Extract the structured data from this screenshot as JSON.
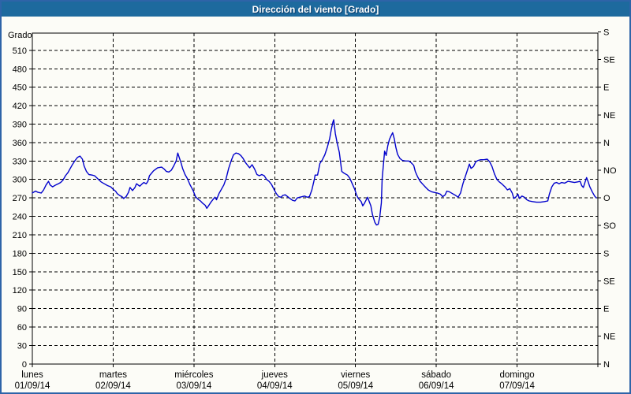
{
  "window": {
    "title": "Dirección del viento [Grado]"
  },
  "colors": {
    "titlebar_bg": "#1d6a9e",
    "title_text": "#ffffff",
    "window_border": "#2e64a8",
    "background": "#fcfcf7",
    "grid": "#000000",
    "line": "#0000cc"
  },
  "chart_data": {
    "type": "line",
    "title": "Dirección del viento [Grado]",
    "ylabel": "Grado",
    "y_left_range": [
      0,
      538
    ],
    "y_left_ticks": [
      0,
      30,
      60,
      90,
      120,
      150,
      180,
      210,
      240,
      270,
      300,
      330,
      360,
      390,
      420,
      450,
      480,
      510
    ],
    "grid": "dashed",
    "x_range_days": [
      0,
      7
    ],
    "x_days": [
      {
        "name": "lunes",
        "date": "01/09/14"
      },
      {
        "name": "martes",
        "date": "02/09/14"
      },
      {
        "name": "miércoles",
        "date": "03/09/14"
      },
      {
        "name": "jueves",
        "date": "04/09/14"
      },
      {
        "name": "viernes",
        "date": "05/09/14"
      },
      {
        "name": "sábado",
        "date": "06/09/14"
      },
      {
        "name": "domingo",
        "date": "07/09/14"
      }
    ],
    "right_axis": [
      {
        "value": 540,
        "label": "S"
      },
      {
        "value": 495,
        "label": "SE"
      },
      {
        "value": 450,
        "label": "E"
      },
      {
        "value": 405,
        "label": "NE"
      },
      {
        "value": 360,
        "label": "N"
      },
      {
        "value": 315,
        "label": "NO"
      },
      {
        "value": 270,
        "label": "O"
      },
      {
        "value": 225,
        "label": "SO"
      },
      {
        "value": 180,
        "label": "S"
      },
      {
        "value": 135,
        "label": "SE"
      },
      {
        "value": 90,
        "label": "E"
      },
      {
        "value": 45,
        "label": "NE"
      },
      {
        "value": 0,
        "label": "N"
      }
    ],
    "series": [
      {
        "name": "Dirección del viento",
        "unit": "Grado",
        "color": "#0000cc",
        "points": [
          [
            0,
            278
          ],
          [
            0.04,
            281
          ],
          [
            0.07,
            279
          ],
          [
            0.11,
            278
          ],
          [
            0.14,
            283
          ],
          [
            0.17,
            291
          ],
          [
            0.2,
            297
          ],
          [
            0.22,
            291
          ],
          [
            0.25,
            288
          ],
          [
            0.29,
            291
          ],
          [
            0.32,
            293
          ],
          [
            0.35,
            295
          ],
          [
            0.38,
            299
          ],
          [
            0.41,
            306
          ],
          [
            0.44,
            311
          ],
          [
            0.47,
            318
          ],
          [
            0.5,
            325
          ],
          [
            0.53,
            331
          ],
          [
            0.56,
            336
          ],
          [
            0.59,
            338
          ],
          [
            0.62,
            333
          ],
          [
            0.64,
            322
          ],
          [
            0.67,
            313
          ],
          [
            0.7,
            308
          ],
          [
            0.74,
            307
          ],
          [
            0.77,
            306
          ],
          [
            0.81,
            301
          ],
          [
            0.85,
            296
          ],
          [
            0.89,
            293
          ],
          [
            0.93,
            290
          ],
          [
            0.97,
            288
          ],
          [
            1,
            284
          ],
          [
            1.03,
            281
          ],
          [
            1.05,
            277
          ],
          [
            1.08,
            274
          ],
          [
            1.11,
            272
          ],
          [
            1.13,
            269
          ],
          [
            1.16,
            272
          ],
          [
            1.19,
            279
          ],
          [
            1.21,
            287
          ],
          [
            1.24,
            282
          ],
          [
            1.27,
            287
          ],
          [
            1.29,
            293
          ],
          [
            1.33,
            289
          ],
          [
            1.36,
            293
          ],
          [
            1.38,
            295
          ],
          [
            1.41,
            293
          ],
          [
            1.43,
            297
          ],
          [
            1.45,
            306
          ],
          [
            1.5,
            314
          ],
          [
            1.55,
            319
          ],
          [
            1.6,
            320
          ],
          [
            1.63,
            317
          ],
          [
            1.66,
            313
          ],
          [
            1.69,
            312
          ],
          [
            1.72,
            315
          ],
          [
            1.75,
            322
          ],
          [
            1.78,
            330
          ],
          [
            1.8,
            343
          ],
          [
            1.82,
            335
          ],
          [
            1.84,
            327
          ],
          [
            1.86,
            318
          ],
          [
            1.89,
            308
          ],
          [
            1.92,
            301
          ],
          [
            1.95,
            292
          ],
          [
            1.97,
            287
          ],
          [
            1.99,
            282
          ],
          [
            2.02,
            272
          ],
          [
            2.05,
            268
          ],
          [
            2.08,
            265
          ],
          [
            2.11,
            261
          ],
          [
            2.14,
            258
          ],
          [
            2.16,
            253
          ],
          [
            2.18,
            257
          ],
          [
            2.21,
            263
          ],
          [
            2.24,
            268
          ],
          [
            2.26,
            271
          ],
          [
            2.28,
            267
          ],
          [
            2.31,
            277
          ],
          [
            2.34,
            284
          ],
          [
            2.37,
            291
          ],
          [
            2.4,
            302
          ],
          [
            2.43,
            318
          ],
          [
            2.46,
            330
          ],
          [
            2.49,
            340
          ],
          [
            2.52,
            343
          ],
          [
            2.55,
            342
          ],
          [
            2.58,
            339
          ],
          [
            2.61,
            334
          ],
          [
            2.64,
            327
          ],
          [
            2.67,
            322
          ],
          [
            2.69,
            319
          ],
          [
            2.72,
            324
          ],
          [
            2.75,
            317
          ],
          [
            2.78,
            308
          ],
          [
            2.81,
            306
          ],
          [
            2.84,
            308
          ],
          [
            2.87,
            306
          ],
          [
            2.9,
            300
          ],
          [
            2.93,
            297
          ],
          [
            2.96,
            292
          ],
          [
            2.99,
            284
          ],
          [
            3.02,
            277
          ],
          [
            3.05,
            272
          ],
          [
            3.08,
            271
          ],
          [
            3.1,
            274
          ],
          [
            3.13,
            275
          ],
          [
            3.16,
            272
          ],
          [
            3.19,
            269
          ],
          [
            3.22,
            266
          ],
          [
            3.25,
            265
          ],
          [
            3.28,
            270
          ],
          [
            3.31,
            271
          ],
          [
            3.34,
            272
          ],
          [
            3.37,
            273
          ],
          [
            3.4,
            271
          ],
          [
            3.43,
            272
          ],
          [
            3.46,
            283
          ],
          [
            3.49,
            300
          ],
          [
            3.5,
            307
          ],
          [
            3.53,
            307
          ],
          [
            3.56,
            326
          ],
          [
            3.59,
            332
          ],
          [
            3.62,
            340
          ],
          [
            3.65,
            352
          ],
          [
            3.68,
            366
          ],
          [
            3.7,
            381
          ],
          [
            3.72,
            393
          ],
          [
            3.73,
            397
          ],
          [
            3.75,
            375
          ],
          [
            3.77,
            361
          ],
          [
            3.8,
            344
          ],
          [
            3.83,
            313
          ],
          [
            3.86,
            310
          ],
          [
            3.9,
            307
          ],
          [
            3.93,
            302
          ],
          [
            3.96,
            293
          ],
          [
            3.99,
            284
          ],
          [
            4.01,
            276
          ],
          [
            4.03,
            270
          ],
          [
            4.05,
            267
          ],
          [
            4.07,
            264
          ],
          [
            4.09,
            257
          ],
          [
            4.11,
            261
          ],
          [
            4.13,
            266
          ],
          [
            4.15,
            271
          ],
          [
            4.17,
            264
          ],
          [
            4.19,
            257
          ],
          [
            4.21,
            243
          ],
          [
            4.24,
            230
          ],
          [
            4.26,
            226
          ],
          [
            4.28,
            227
          ],
          [
            4.3,
            238
          ],
          [
            4.32,
            262
          ],
          [
            4.33,
            301
          ],
          [
            4.35,
            331
          ],
          [
            4.36,
            346
          ],
          [
            4.38,
            339
          ],
          [
            4.4,
            355
          ],
          [
            4.42,
            365
          ],
          [
            4.44,
            371
          ],
          [
            4.46,
            376
          ],
          [
            4.48,
            366
          ],
          [
            4.5,
            352
          ],
          [
            4.52,
            341
          ],
          [
            4.55,
            334
          ],
          [
            4.58,
            331
          ],
          [
            4.62,
            330
          ],
          [
            4.66,
            330
          ],
          [
            4.69,
            327
          ],
          [
            4.72,
            323
          ],
          [
            4.74,
            313
          ],
          [
            4.77,
            304
          ],
          [
            4.8,
            297
          ],
          [
            4.84,
            291
          ],
          [
            4.87,
            287
          ],
          [
            4.9,
            283
          ],
          [
            4.94,
            280
          ],
          [
            4.97,
            279
          ],
          [
            5.01,
            278
          ],
          [
            5.05,
            276
          ],
          [
            5.08,
            272
          ],
          [
            5.11,
            275
          ],
          [
            5.13,
            281
          ],
          [
            5.16,
            280
          ],
          [
            5.2,
            277
          ],
          [
            5.24,
            274
          ],
          [
            5.27,
            271
          ],
          [
            5.3,
            278
          ],
          [
            5.33,
            293
          ],
          [
            5.36,
            305
          ],
          [
            5.39,
            317
          ],
          [
            5.41,
            325
          ],
          [
            5.43,
            318
          ],
          [
            5.46,
            321
          ],
          [
            5.49,
            329
          ],
          [
            5.52,
            331
          ],
          [
            5.55,
            332
          ],
          [
            5.59,
            332
          ],
          [
            5.63,
            333
          ],
          [
            5.66,
            329
          ],
          [
            5.69,
            321
          ],
          [
            5.72,
            309
          ],
          [
            5.75,
            300
          ],
          [
            5.78,
            296
          ],
          [
            5.81,
            293
          ],
          [
            5.85,
            288
          ],
          [
            5.88,
            283
          ],
          [
            5.91,
            285
          ],
          [
            5.94,
            278
          ],
          [
            5.96,
            269
          ],
          [
            5.99,
            272
          ],
          [
            6.01,
            276
          ],
          [
            6.03,
            269
          ],
          [
            6.06,
            273
          ],
          [
            6.09,
            271
          ],
          [
            6.12,
            267
          ],
          [
            6.15,
            265
          ],
          [
            6.19,
            264
          ],
          [
            6.24,
            263
          ],
          [
            6.29,
            263
          ],
          [
            6.34,
            264
          ],
          [
            6.38,
            265
          ],
          [
            6.4,
            276
          ],
          [
            6.43,
            288
          ],
          [
            6.46,
            294
          ],
          [
            6.49,
            295
          ],
          [
            6.52,
            293
          ],
          [
            6.55,
            295
          ],
          [
            6.59,
            294
          ],
          [
            6.63,
            297
          ],
          [
            6.67,
            296
          ],
          [
            6.71,
            295
          ],
          [
            6.75,
            296
          ],
          [
            6.78,
            297
          ],
          [
            6.8,
            290
          ],
          [
            6.82,
            287
          ],
          [
            6.84,
            295
          ],
          [
            6.86,
            303
          ],
          [
            6.88,
            296
          ],
          [
            6.9,
            288
          ],
          [
            6.93,
            280
          ],
          [
            6.96,
            273
          ],
          [
            6.98,
            270
          ]
        ]
      }
    ]
  }
}
